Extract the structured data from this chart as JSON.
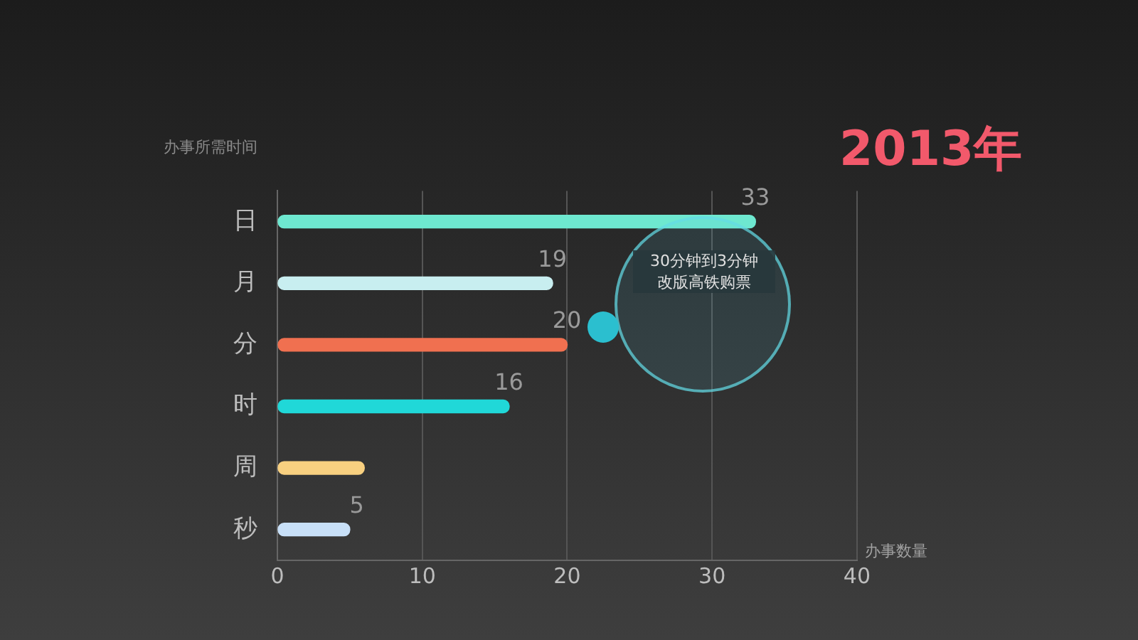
{
  "chart_data": {
    "type": "bar",
    "orientation": "horizontal",
    "title": "2013年",
    "xlabel": "办事数量",
    "ylabel": "办事所需时间",
    "categories": [
      "日",
      "月",
      "分",
      "时",
      "周",
      "秒"
    ],
    "values": [
      33,
      19,
      20,
      16,
      6,
      5
    ],
    "value_labels": [
      "33",
      "19",
      "20",
      "16",
      null,
      "5"
    ],
    "colors": [
      "#6ee8d0",
      "#c8eef0",
      "#f07050",
      "#20d8d8",
      "#f8d080",
      "#c8e0f8"
    ],
    "xlim": [
      0,
      40
    ],
    "xticks": [
      0,
      10,
      20,
      30,
      40
    ],
    "grid": "x",
    "legend": false,
    "annotations": [
      "30分钟到3分钟",
      "改版高铁购票"
    ]
  }
}
